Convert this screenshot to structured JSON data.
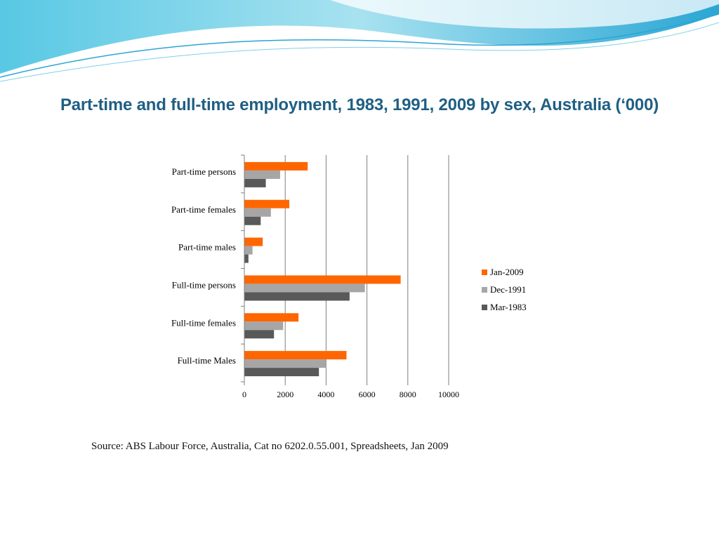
{
  "slide": {
    "title": "Part-time and full-time employment, 1983, 1991, 2009 by sex, Australia (‘000)",
    "source": "Source: ABS Labour Force, Australia, Cat no 6202.0.55.001, Spreadsheets, Jan 2009"
  },
  "chart_data": {
    "type": "bar",
    "orientation": "horizontal",
    "title": "",
    "xlabel": "",
    "ylabel": "",
    "categories": [
      "Part-time persons",
      "Part-time females",
      "Part-time males",
      "Full-time persons",
      "Full-time females",
      "Full-time Males"
    ],
    "series": [
      {
        "name": "Jan-2009",
        "color": "#ff6600",
        "values": [
          3100,
          2200,
          900,
          7650,
          2650,
          5000
        ]
      },
      {
        "name": "Dec-1991",
        "color": "#a6a6a6",
        "values": [
          1750,
          1300,
          400,
          5900,
          1900,
          4000
        ]
      },
      {
        "name": "Mar-1983",
        "color": "#595959",
        "values": [
          1050,
          800,
          200,
          5150,
          1450,
          3650
        ]
      }
    ],
    "xlim": [
      0,
      10000
    ],
    "xticks": [
      "0",
      "2000",
      "4000",
      "6000",
      "8000",
      "10000"
    ],
    "grid": "vertical",
    "legend_position": "right"
  }
}
